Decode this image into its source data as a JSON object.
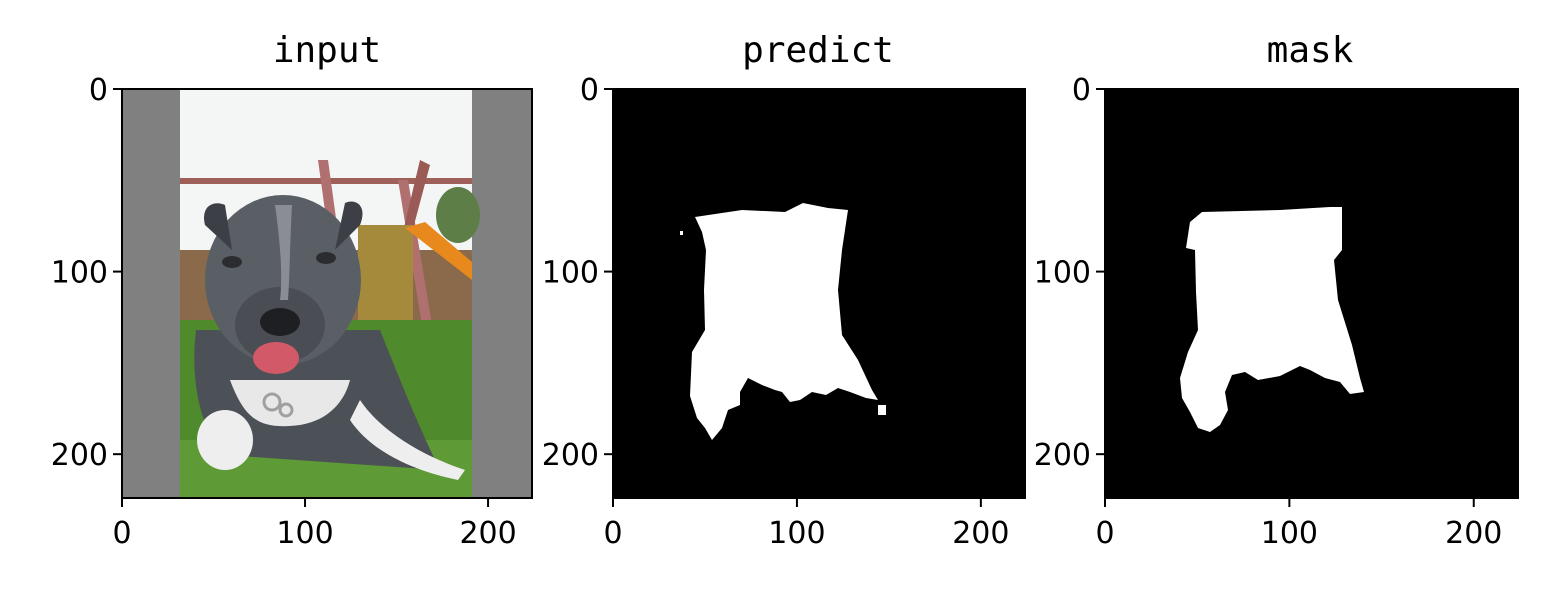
{
  "figure": {
    "panels": [
      {
        "id": "input",
        "title": "input",
        "image_kind": "photo",
        "image_description_icon": "dog-photo",
        "axis": {
          "xlim": [
            0,
            224
          ],
          "ylim": [
            224,
            0
          ],
          "xticks": [
            0,
            100,
            200
          ],
          "yticks": [
            0,
            100,
            200
          ]
        }
      },
      {
        "id": "predict",
        "title": "predict",
        "image_kind": "binary-mask",
        "axis": {
          "xlim": [
            0,
            224
          ],
          "ylim": [
            224,
            0
          ],
          "xticks": [
            0,
            100,
            200
          ],
          "yticks": [
            0,
            100,
            200
          ]
        }
      },
      {
        "id": "mask",
        "title": "mask",
        "image_kind": "binary-mask",
        "axis": {
          "xlim": [
            0,
            224
          ],
          "ylim": [
            224,
            0
          ],
          "xticks": [
            0,
            100,
            200
          ],
          "yticks": [
            0,
            100,
            200
          ]
        }
      }
    ],
    "colors": {
      "padding_gray": "#808080",
      "mask_background": "#000000",
      "mask_foreground": "#ffffff",
      "grass": "#4f8a2c",
      "sky": "#f4f6f5",
      "dog_coat": "#555a60",
      "tongue": "#d25a68",
      "slide": "#e8891e"
    }
  }
}
